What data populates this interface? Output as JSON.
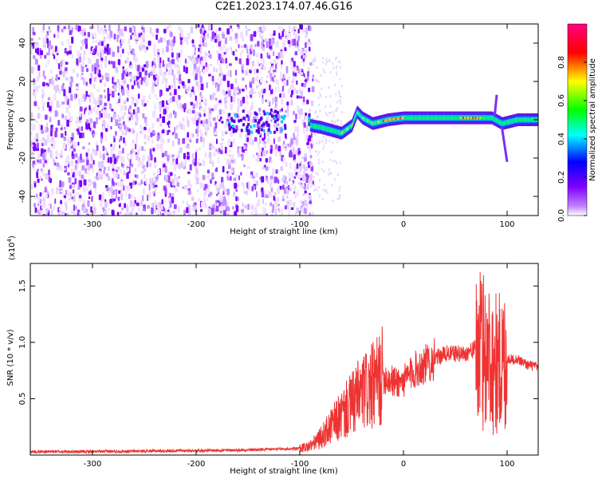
{
  "title": "C2E1.2023.174.07.46.G16",
  "chart_data": [
    {
      "type": "heatmap",
      "xlabel": "Height of straight line (km)",
      "ylabel": "Frequency (Hz)",
      "xlim": [
        -360,
        130
      ],
      "ylim": [
        -50,
        50
      ],
      "x_ticks": [
        -300,
        -200,
        -100,
        0,
        100
      ],
      "y_ticks": [
        -40,
        -20,
        0,
        20,
        40
      ],
      "colorbar": {
        "label": "Normalized spectral amplitude",
        "range": [
          0,
          1
        ],
        "ticks": [
          "0.0",
          "0.2",
          "0.4",
          "0.6",
          "0.8"
        ],
        "colors": [
          "#f0e0ff",
          "#8000ff",
          "#0000ff",
          "#00ffff",
          "#00ff00",
          "#ffff00",
          "#ff0000",
          "#ff0080"
        ]
      },
      "trace_frequency_hz": [
        {
          "x": -90,
          "y": -3
        },
        {
          "x": -80,
          "y": -4
        },
        {
          "x": -60,
          "y": -7
        },
        {
          "x": -50,
          "y": -3
        },
        {
          "x": -45,
          "y": 4
        },
        {
          "x": -40,
          "y": 1
        },
        {
          "x": -30,
          "y": -2
        },
        {
          "x": -15,
          "y": 0
        },
        {
          "x": 0,
          "y": 1
        },
        {
          "x": 30,
          "y": 1
        },
        {
          "x": 60,
          "y": 1
        },
        {
          "x": 85,
          "y": 1
        },
        {
          "x": 95,
          "y": -2
        },
        {
          "x": 110,
          "y": 0
        },
        {
          "x": 130,
          "y": 0
        }
      ]
    },
    {
      "type": "line",
      "xlabel": "Height of straight line (km)",
      "ylabel": "SNR (10 * v/v)",
      "scale_label": "(x10",
      "scale_exp": "4",
      "scale_close": ")",
      "xlim": [
        -360,
        130
      ],
      "ylim": [
        0,
        17000
      ],
      "x_ticks": [
        -300,
        -200,
        -100,
        0,
        100
      ],
      "y_ticks": [
        {
          "value": 5000,
          "label": "0.5"
        },
        {
          "value": 10000,
          "label": "1.0"
        },
        {
          "value": 15000,
          "label": "1.5"
        }
      ],
      "color": "#ee3333",
      "series": [
        {
          "x": [
            -360,
            -300,
            -250,
            -200,
            -150,
            -110,
            -100,
            -90,
            -80,
            -70,
            -60,
            -50,
            -40,
            -30,
            -20,
            -10,
            0,
            10,
            20,
            30,
            40,
            50,
            60,
            70,
            80,
            90,
            100,
            110,
            120,
            130
          ],
          "y": [
            300,
            300,
            350,
            400,
            450,
            550,
            600,
            800,
            1500,
            2500,
            3500,
            4500,
            5500,
            6000,
            7000,
            6500,
            6500,
            7500,
            8000,
            8500,
            9000,
            9000,
            9000,
            9500,
            9000,
            8000,
            8500,
            8500,
            8000,
            7800
          ]
        }
      ]
    }
  ]
}
